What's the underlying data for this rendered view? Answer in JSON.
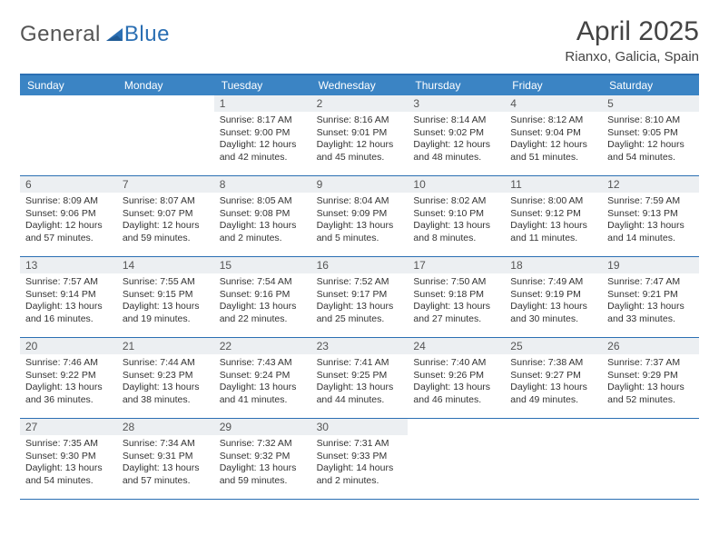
{
  "logo": {
    "text1": "General",
    "text2": "Blue"
  },
  "title": "April 2025",
  "location": "Rianxo, Galicia, Spain",
  "colors": {
    "header_bg": "#3b84c4",
    "border": "#2b6fb3",
    "daynum_bg": "#eceff2",
    "text": "#333333",
    "logo_gray": "#555555",
    "logo_blue": "#2b6fb3"
  },
  "weekdays": [
    "Sunday",
    "Monday",
    "Tuesday",
    "Wednesday",
    "Thursday",
    "Friday",
    "Saturday"
  ],
  "weeks": [
    [
      {
        "num": "",
        "lines": []
      },
      {
        "num": "",
        "lines": []
      },
      {
        "num": "1",
        "lines": [
          "Sunrise: 8:17 AM",
          "Sunset: 9:00 PM",
          "Daylight: 12 hours",
          "and 42 minutes."
        ]
      },
      {
        "num": "2",
        "lines": [
          "Sunrise: 8:16 AM",
          "Sunset: 9:01 PM",
          "Daylight: 12 hours",
          "and 45 minutes."
        ]
      },
      {
        "num": "3",
        "lines": [
          "Sunrise: 8:14 AM",
          "Sunset: 9:02 PM",
          "Daylight: 12 hours",
          "and 48 minutes."
        ]
      },
      {
        "num": "4",
        "lines": [
          "Sunrise: 8:12 AM",
          "Sunset: 9:04 PM",
          "Daylight: 12 hours",
          "and 51 minutes."
        ]
      },
      {
        "num": "5",
        "lines": [
          "Sunrise: 8:10 AM",
          "Sunset: 9:05 PM",
          "Daylight: 12 hours",
          "and 54 minutes."
        ]
      }
    ],
    [
      {
        "num": "6",
        "lines": [
          "Sunrise: 8:09 AM",
          "Sunset: 9:06 PM",
          "Daylight: 12 hours",
          "and 57 minutes."
        ]
      },
      {
        "num": "7",
        "lines": [
          "Sunrise: 8:07 AM",
          "Sunset: 9:07 PM",
          "Daylight: 12 hours",
          "and 59 minutes."
        ]
      },
      {
        "num": "8",
        "lines": [
          "Sunrise: 8:05 AM",
          "Sunset: 9:08 PM",
          "Daylight: 13 hours",
          "and 2 minutes."
        ]
      },
      {
        "num": "9",
        "lines": [
          "Sunrise: 8:04 AM",
          "Sunset: 9:09 PM",
          "Daylight: 13 hours",
          "and 5 minutes."
        ]
      },
      {
        "num": "10",
        "lines": [
          "Sunrise: 8:02 AM",
          "Sunset: 9:10 PM",
          "Daylight: 13 hours",
          "and 8 minutes."
        ]
      },
      {
        "num": "11",
        "lines": [
          "Sunrise: 8:00 AM",
          "Sunset: 9:12 PM",
          "Daylight: 13 hours",
          "and 11 minutes."
        ]
      },
      {
        "num": "12",
        "lines": [
          "Sunrise: 7:59 AM",
          "Sunset: 9:13 PM",
          "Daylight: 13 hours",
          "and 14 minutes."
        ]
      }
    ],
    [
      {
        "num": "13",
        "lines": [
          "Sunrise: 7:57 AM",
          "Sunset: 9:14 PM",
          "Daylight: 13 hours",
          "and 16 minutes."
        ]
      },
      {
        "num": "14",
        "lines": [
          "Sunrise: 7:55 AM",
          "Sunset: 9:15 PM",
          "Daylight: 13 hours",
          "and 19 minutes."
        ]
      },
      {
        "num": "15",
        "lines": [
          "Sunrise: 7:54 AM",
          "Sunset: 9:16 PM",
          "Daylight: 13 hours",
          "and 22 minutes."
        ]
      },
      {
        "num": "16",
        "lines": [
          "Sunrise: 7:52 AM",
          "Sunset: 9:17 PM",
          "Daylight: 13 hours",
          "and 25 minutes."
        ]
      },
      {
        "num": "17",
        "lines": [
          "Sunrise: 7:50 AM",
          "Sunset: 9:18 PM",
          "Daylight: 13 hours",
          "and 27 minutes."
        ]
      },
      {
        "num": "18",
        "lines": [
          "Sunrise: 7:49 AM",
          "Sunset: 9:19 PM",
          "Daylight: 13 hours",
          "and 30 minutes."
        ]
      },
      {
        "num": "19",
        "lines": [
          "Sunrise: 7:47 AM",
          "Sunset: 9:21 PM",
          "Daylight: 13 hours",
          "and 33 minutes."
        ]
      }
    ],
    [
      {
        "num": "20",
        "lines": [
          "Sunrise: 7:46 AM",
          "Sunset: 9:22 PM",
          "Daylight: 13 hours",
          "and 36 minutes."
        ]
      },
      {
        "num": "21",
        "lines": [
          "Sunrise: 7:44 AM",
          "Sunset: 9:23 PM",
          "Daylight: 13 hours",
          "and 38 minutes."
        ]
      },
      {
        "num": "22",
        "lines": [
          "Sunrise: 7:43 AM",
          "Sunset: 9:24 PM",
          "Daylight: 13 hours",
          "and 41 minutes."
        ]
      },
      {
        "num": "23",
        "lines": [
          "Sunrise: 7:41 AM",
          "Sunset: 9:25 PM",
          "Daylight: 13 hours",
          "and 44 minutes."
        ]
      },
      {
        "num": "24",
        "lines": [
          "Sunrise: 7:40 AM",
          "Sunset: 9:26 PM",
          "Daylight: 13 hours",
          "and 46 minutes."
        ]
      },
      {
        "num": "25",
        "lines": [
          "Sunrise: 7:38 AM",
          "Sunset: 9:27 PM",
          "Daylight: 13 hours",
          "and 49 minutes."
        ]
      },
      {
        "num": "26",
        "lines": [
          "Sunrise: 7:37 AM",
          "Sunset: 9:29 PM",
          "Daylight: 13 hours",
          "and 52 minutes."
        ]
      }
    ],
    [
      {
        "num": "27",
        "lines": [
          "Sunrise: 7:35 AM",
          "Sunset: 9:30 PM",
          "Daylight: 13 hours",
          "and 54 minutes."
        ]
      },
      {
        "num": "28",
        "lines": [
          "Sunrise: 7:34 AM",
          "Sunset: 9:31 PM",
          "Daylight: 13 hours",
          "and 57 minutes."
        ]
      },
      {
        "num": "29",
        "lines": [
          "Sunrise: 7:32 AM",
          "Sunset: 9:32 PM",
          "Daylight: 13 hours",
          "and 59 minutes."
        ]
      },
      {
        "num": "30",
        "lines": [
          "Sunrise: 7:31 AM",
          "Sunset: 9:33 PM",
          "Daylight: 14 hours",
          "and 2 minutes."
        ]
      },
      {
        "num": "",
        "lines": []
      },
      {
        "num": "",
        "lines": []
      },
      {
        "num": "",
        "lines": []
      }
    ]
  ]
}
